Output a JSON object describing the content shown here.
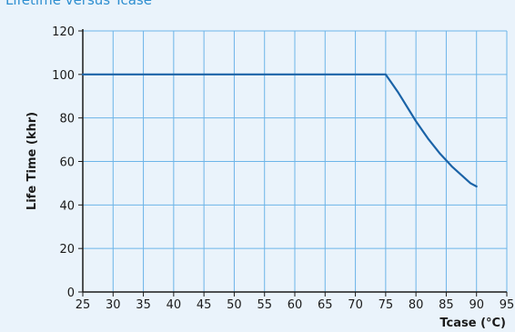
{
  "page": {
    "title": "Lifetime versus Tcase"
  },
  "chart_data": {
    "type": "line",
    "title": "Lifetime versus Tcase",
    "xlabel": "Tcase (°C)",
    "ylabel": "Life Time (khr)",
    "xlim": [
      25,
      95
    ],
    "ylim": [
      0,
      120
    ],
    "x_ticks": [
      25,
      30,
      35,
      40,
      45,
      50,
      55,
      60,
      65,
      70,
      75,
      80,
      85,
      90,
      95
    ],
    "y_ticks": [
      0,
      20,
      40,
      60,
      80,
      100,
      120
    ],
    "grid": true,
    "series": [
      {
        "x": [
          25,
          75,
          76,
          77,
          78,
          79,
          80,
          81,
          82,
          83,
          84,
          85,
          86,
          87,
          88,
          89,
          90
        ],
        "y": [
          100,
          100,
          96,
          92,
          87.5,
          83,
          78.5,
          74.5,
          70.5,
          67,
          63.5,
          60.5,
          57.5,
          55,
          52.5,
          50,
          48.5
        ]
      }
    ],
    "colors": {
      "line": "#1b63a7",
      "grid": "#6cb4e8",
      "axis": "#1a1a1a",
      "background": "#eaf3fb"
    }
  }
}
